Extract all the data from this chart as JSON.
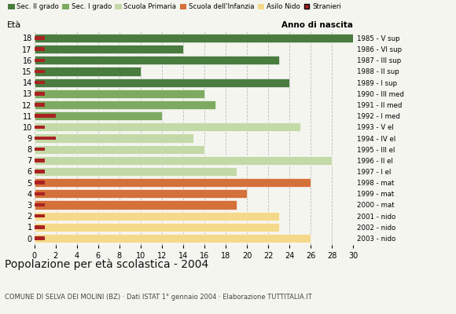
{
  "ages": [
    18,
    17,
    16,
    15,
    14,
    13,
    12,
    11,
    10,
    9,
    8,
    7,
    6,
    5,
    4,
    3,
    2,
    1,
    0
  ],
  "values": [
    30,
    14,
    23,
    10,
    24,
    16,
    17,
    12,
    25,
    15,
    16,
    28,
    19,
    26,
    20,
    19,
    23,
    23,
    26
  ],
  "stranieri_vals": [
    1,
    1,
    1,
    1,
    1,
    1,
    1,
    2,
    1,
    2,
    1,
    1,
    1,
    1,
    1,
    1,
    1,
    1,
    1
  ],
  "bar_colors": [
    "#4a7c40",
    "#4a7c40",
    "#4a7c40",
    "#4a7c40",
    "#4a7c40",
    "#7daa60",
    "#7daa60",
    "#7daa60",
    "#c3d9a8",
    "#c3d9a8",
    "#c3d9a8",
    "#c3d9a8",
    "#c3d9a8",
    "#d4703a",
    "#d4703a",
    "#d4703a",
    "#f5d98a",
    "#f5d98a",
    "#f5d98a"
  ],
  "right_labels": [
    "1985 - V sup",
    "1986 - VI sup",
    "1987 - III sup",
    "1988 - II sup",
    "1989 - I sup",
    "1990 - III med",
    "1991 - II med",
    "1992 - I med",
    "1993 - V el",
    "1994 - IV el",
    "1995 - III el",
    "1996 - II el",
    "1997 - I el",
    "1998 - mat",
    "1999 - mat",
    "2000 - mat",
    "2001 - nido",
    "2002 - nido",
    "2003 - nido"
  ],
  "title": "Popolazione per età scolastica - 2004",
  "subtitle": "COMUNE DI SELVA DEI MOLINI (BZ) · Dati ISTAT 1° gennaio 2004 · Elaborazione TUTTITALIA.IT",
  "legend_labels": [
    "Sec. II grado",
    "Sec. I grado",
    "Scuola Primaria",
    "Scuola dell'Infanzia",
    "Asilo Nido",
    "Stranieri"
  ],
  "legend_colors": [
    "#4a7c40",
    "#7daa60",
    "#c3d9a8",
    "#d4703a",
    "#f5d98a",
    "#aa2222"
  ],
  "xlim": [
    0,
    30
  ],
  "xticks": [
    0,
    2,
    4,
    6,
    8,
    10,
    12,
    14,
    16,
    18,
    20,
    22,
    24,
    26,
    28,
    30
  ],
  "eta_label": "Età",
  "anno_label": "Anno di nascita",
  "background_color": "#f5f5f0",
  "bar_height": 0.78,
  "stranieri_color": "#aa2222",
  "grid_color": "#bbbbbb"
}
